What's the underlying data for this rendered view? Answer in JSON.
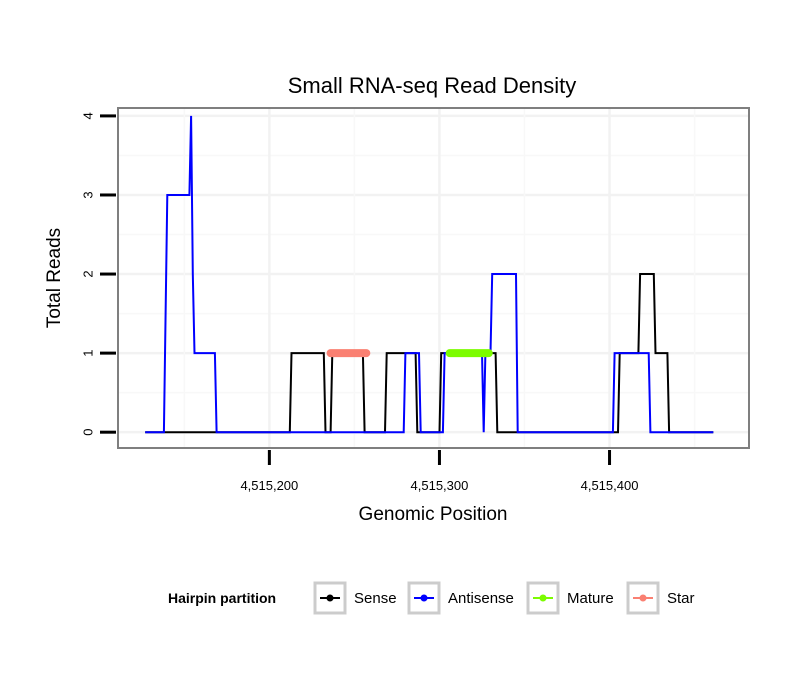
{
  "chart_data": {
    "type": "line",
    "title": "Small RNA-seq Read Density",
    "xlabel": "Genomic Position",
    "ylabel": "Total Reads",
    "xlim": [
      4515111,
      4515482
    ],
    "ylim": [
      -0.2,
      4.1
    ],
    "x_ticks": [
      4515200,
      4515300,
      4515400
    ],
    "x_tick_labels": [
      "4,515,200",
      "4,515,300",
      "4,515,400"
    ],
    "y_ticks": [
      0,
      1,
      2,
      3,
      4
    ],
    "y_tick_labels": [
      "0",
      "1",
      "2",
      "3",
      "4"
    ],
    "grid": true,
    "legend": {
      "title": "Hairpin partition",
      "position": "bottom",
      "entries": [
        {
          "label": "Sense",
          "color": "#000000"
        },
        {
          "label": "Antisense",
          "color": "#0000ff"
        },
        {
          "label": "Mature",
          "color": "#7cfc00"
        },
        {
          "label": "Star",
          "color": "#fa8072"
        }
      ]
    },
    "series": [
      {
        "name": "Sense",
        "color": "#000000",
        "points": [
          [
            4515127,
            0
          ],
          [
            4515212,
            0
          ],
          [
            4515213,
            1
          ],
          [
            4515232,
            1
          ],
          [
            4515233,
            0
          ],
          [
            4515236,
            0
          ],
          [
            4515237,
            1
          ],
          [
            4515255,
            1
          ],
          [
            4515256,
            0
          ],
          [
            4515268,
            0
          ],
          [
            4515269,
            1
          ],
          [
            4515286,
            1
          ],
          [
            4515287,
            0
          ],
          [
            4515300,
            0
          ],
          [
            4515301,
            1
          ],
          [
            4515333,
            1
          ],
          [
            4515334,
            0
          ],
          [
            4515405,
            0
          ],
          [
            4515406,
            1
          ],
          [
            4515417,
            1
          ],
          [
            4515418,
            2
          ],
          [
            4515426,
            2
          ],
          [
            4515427,
            1
          ],
          [
            4515434,
            1
          ],
          [
            4515435,
            0
          ],
          [
            4515461,
            0
          ]
        ]
      },
      {
        "name": "Antisense",
        "color": "#0000ff",
        "points": [
          [
            4515127,
            0
          ],
          [
            4515138,
            0
          ],
          [
            4515140,
            3
          ],
          [
            4515153,
            3
          ],
          [
            4515154,
            4
          ],
          [
            4515155,
            2
          ],
          [
            4515156,
            1
          ],
          [
            4515168,
            1
          ],
          [
            4515169,
            0
          ],
          [
            4515279,
            0
          ],
          [
            4515280,
            1
          ],
          [
            4515288,
            1
          ],
          [
            4515289,
            0
          ],
          [
            4515302,
            0
          ],
          [
            4515303,
            1
          ],
          [
            4515325,
            1
          ],
          [
            4515326,
            0
          ],
          [
            4515327,
            1
          ],
          [
            4515330,
            1
          ],
          [
            4515331,
            2
          ],
          [
            4515345,
            2
          ],
          [
            4515346,
            0
          ],
          [
            4515402,
            0
          ],
          [
            4515403,
            1
          ],
          [
            4515423,
            1
          ],
          [
            4515424,
            0
          ],
          [
            4515461,
            0
          ]
        ]
      },
      {
        "name": "Mature",
        "color": "#7cfc00",
        "segments": [
          [
            4515306,
            4515329,
            1
          ]
        ]
      },
      {
        "name": "Star",
        "color": "#fa8072",
        "segments": [
          [
            4515236,
            4515257,
            1
          ]
        ]
      }
    ]
  }
}
